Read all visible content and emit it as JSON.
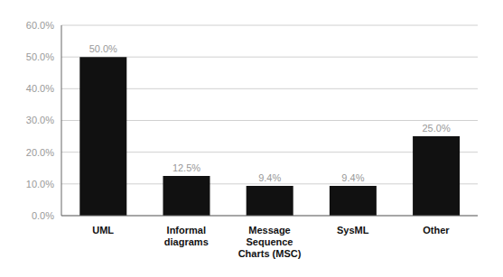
{
  "chart_data": {
    "type": "bar",
    "categories": [
      "UML",
      "Informal\ndiagrams",
      "Message\nSequence\nCharts (MSC)",
      "SysML",
      "Other"
    ],
    "values": [
      50.0,
      12.5,
      9.4,
      9.4,
      25.0
    ],
    "value_labels": [
      "50.0%",
      "12.5%",
      "9.4%",
      "9.4%",
      "25.0%"
    ],
    "color": "#111111",
    "ylim": [
      0,
      60
    ],
    "yticks": [
      {
        "value": 0,
        "label": "0.0%"
      },
      {
        "value": 10,
        "label": "10.0%"
      },
      {
        "value": 20,
        "label": "20.0%"
      },
      {
        "value": 30,
        "label": "30.0%"
      },
      {
        "value": 40,
        "label": "40.0%"
      },
      {
        "value": 50,
        "label": "50.0%"
      },
      {
        "value": 60,
        "label": "60.0%"
      }
    ],
    "grid": true,
    "data_labels": true
  }
}
